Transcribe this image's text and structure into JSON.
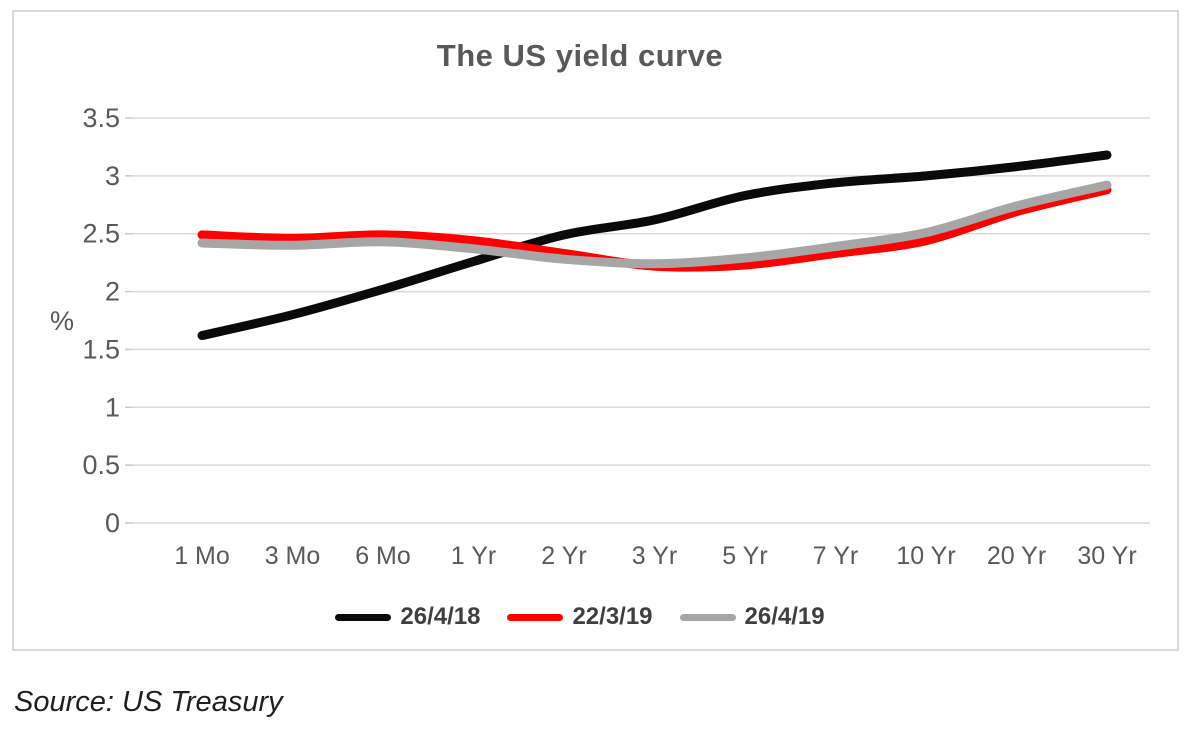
{
  "chart": {
    "title": "The US yield curve",
    "ylabel": "%",
    "source_note": "Source: US Treasury"
  },
  "chart_data": {
    "type": "line",
    "title": "The US yield curve",
    "xlabel": "",
    "ylabel": "%",
    "categories": [
      "1 Mo",
      "3 Mo",
      "6 Mo",
      "1 Yr",
      "2 Yr",
      "3 Yr",
      "5 Yr",
      "7 Yr",
      "10 Yr",
      "20 Yr",
      "30 Yr"
    ],
    "series": [
      {
        "name": "26/4/18",
        "color": "#0a0a0a",
        "values": [
          1.62,
          1.8,
          2.02,
          2.26,
          2.49,
          2.62,
          2.83,
          2.94,
          3.0,
          3.08,
          3.18
        ]
      },
      {
        "name": "22/3/19",
        "color": "#fe0000",
        "values": [
          2.49,
          2.46,
          2.49,
          2.44,
          2.33,
          2.22,
          2.23,
          2.33,
          2.44,
          2.69,
          2.88
        ]
      },
      {
        "name": "26/4/19",
        "color": "#a6a6a6",
        "values": [
          2.42,
          2.4,
          2.43,
          2.37,
          2.28,
          2.24,
          2.29,
          2.39,
          2.51,
          2.74,
          2.92
        ]
      }
    ],
    "ylim": [
      0,
      3.5
    ],
    "ytick_step": 0.5,
    "ytick_labels": [
      "0",
      "0.5",
      "1",
      "1.5",
      "2",
      "2.5",
      "3",
      "3.5"
    ],
    "grid": true,
    "legend_position": "bottom",
    "colors": {
      "grid": "#d9d9d9",
      "frame_border": "#d9d9d9",
      "tick_text": "#595959",
      "title_text": "#595959",
      "legend_text": "#3f3f3f",
      "source_text": "#1f1f1f"
    }
  }
}
